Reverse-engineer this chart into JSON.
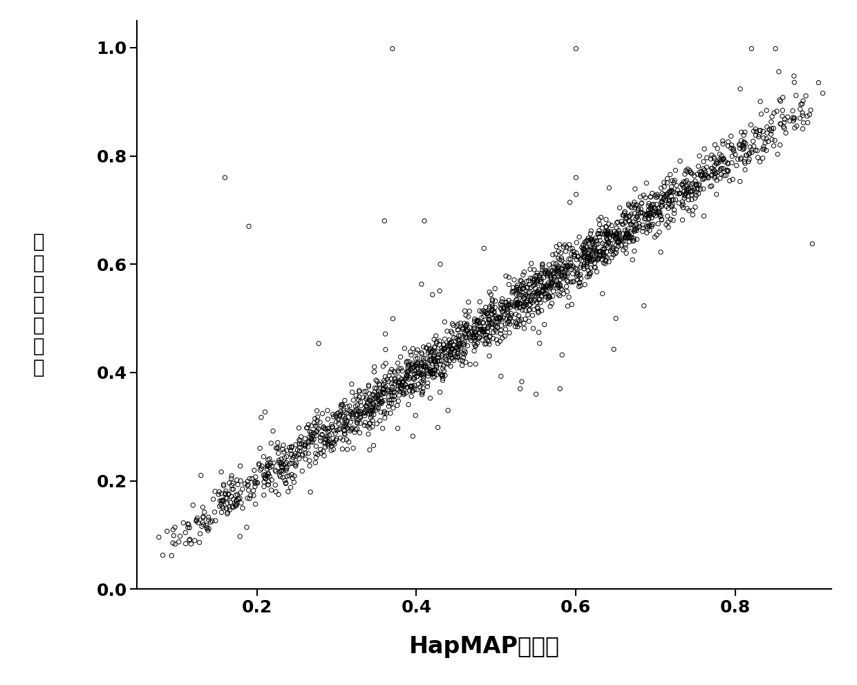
{
  "xlabel": "HapMAP数据库",
  "ylabel_chars": [
    "中",
    "国",
    "人",
    "群",
    "数",
    "据",
    "库"
  ],
  "xlim": [
    0.05,
    0.92
  ],
  "ylim": [
    0.0,
    1.05
  ],
  "xticks": [
    0.2,
    0.4,
    0.6,
    0.8
  ],
  "yticks": [
    0.0,
    0.2,
    0.4,
    0.6,
    0.8,
    1.0
  ],
  "background_color": "#ffffff",
  "marker_color": "black",
  "marker_size": 4.5,
  "marker_linewidth": 0.7,
  "seed": 42,
  "n_main": 2000,
  "noise_std": 0.022,
  "xlabel_fontsize": 24,
  "ylabel_fontsize": 20,
  "tick_fontsize": 18
}
